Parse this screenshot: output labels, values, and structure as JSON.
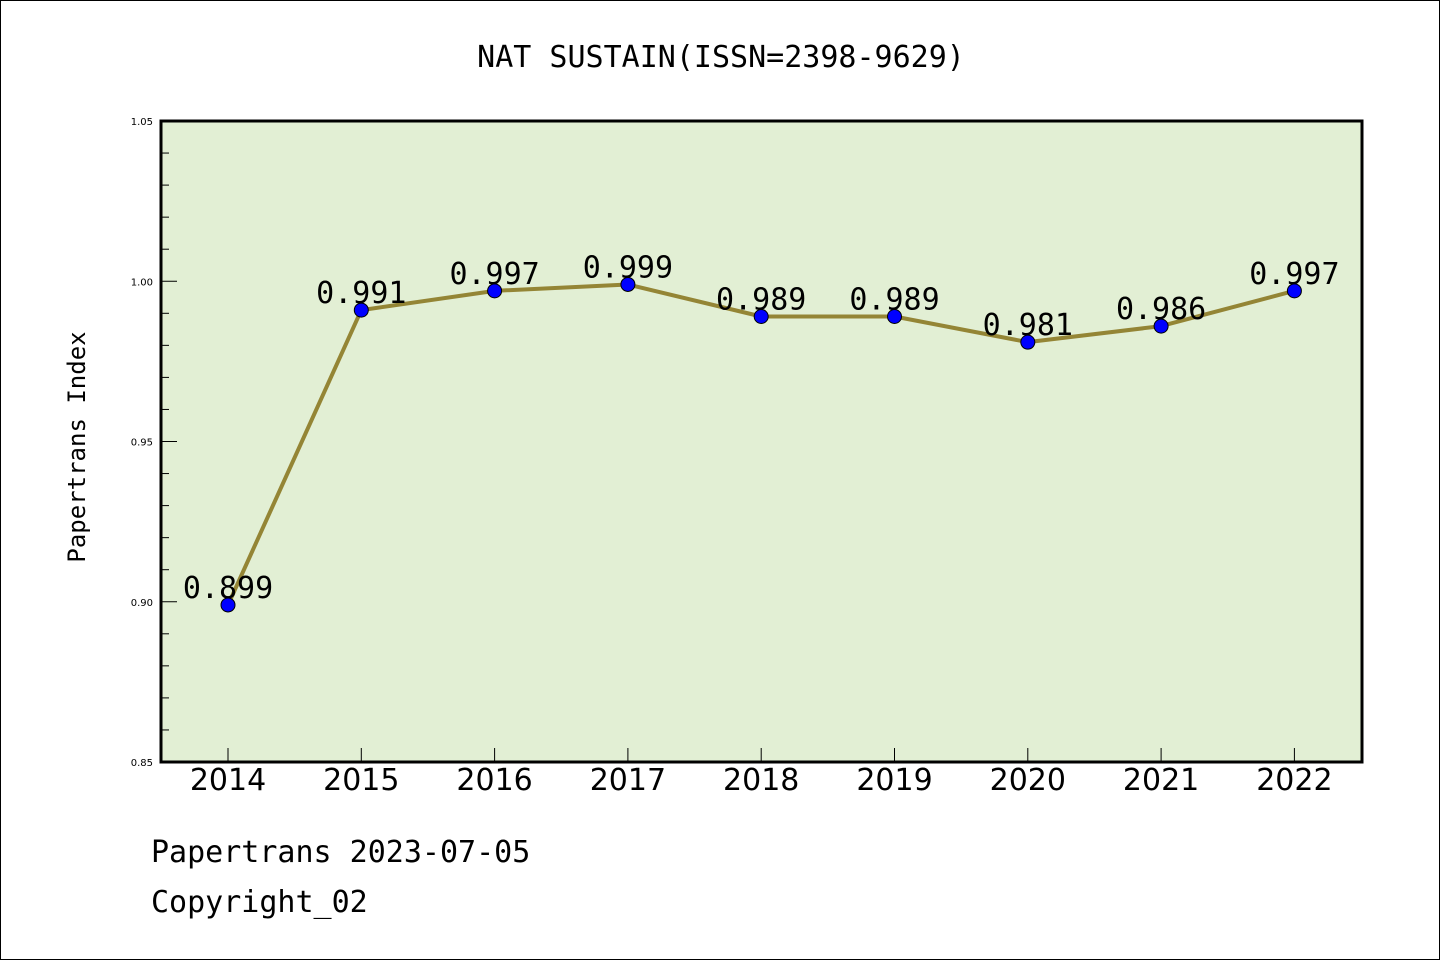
{
  "chart_data": {
    "type": "line",
    "title": "NAT SUSTAIN(ISSN=2398-9629)",
    "ylabel": "Papertrans Index",
    "xlabel": "",
    "categories": [
      "2014",
      "2015",
      "2016",
      "2017",
      "2018",
      "2019",
      "2020",
      "2021",
      "2022"
    ],
    "series": [
      {
        "values": [
          0.899,
          0.991,
          0.997,
          0.999,
          0.989,
          0.989,
          0.981,
          0.986,
          0.997
        ]
      }
    ],
    "data_labels": [
      "0.899",
      "0.991",
      "0.997",
      "0.999",
      "0.989",
      "0.989",
      "0.981",
      "0.986",
      "0.997"
    ],
    "ylim": [
      0.85,
      1.05
    ],
    "yticks": [
      "0.85",
      "0.90",
      "0.95",
      "1.00",
      "1.05"
    ],
    "grid": false,
    "colors": {
      "plot_background": "#e2efd4",
      "line": "#948535",
      "marker": "#0000ff",
      "marker_edge": "#000000"
    }
  },
  "footer": {
    "line1": "Papertrans 2023-07-05",
    "line2": "Copyright_02"
  }
}
